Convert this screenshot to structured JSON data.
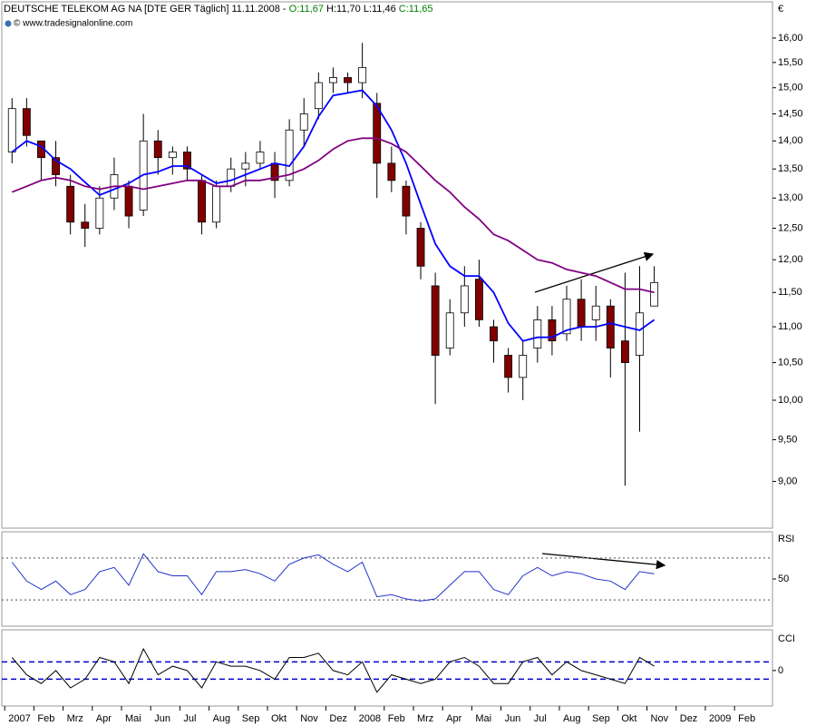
{
  "chart_data": [
    {
      "type": "candlestick",
      "title": "DEUTSCHE TELEKOM AG NA [DTE GER  Täglich]",
      "date": "11.11.2008 -",
      "header_open": "O:11,67",
      "header_high": "H:11,70",
      "header_low": "L:11,46",
      "header_close": "C:11,65",
      "source": "© www.tradesignalonline.com",
      "currency": "€",
      "log": true,
      "up_color": "#ffffff",
      "down_color": "#800000",
      "x": [
        0.25,
        0.75,
        1.25,
        1.75,
        2.25,
        2.75,
        3.25,
        3.75,
        4.25,
        4.75,
        5.25,
        5.75,
        6.25,
        6.75,
        7.25,
        7.75,
        8.25,
        8.75,
        9.25,
        9.75,
        10.25,
        10.75,
        11.25,
        11.75,
        12.25,
        12.75,
        13.25,
        13.75,
        14.25,
        14.75,
        15.25,
        15.75,
        16.25,
        16.75,
        17.25,
        17.75,
        18.25,
        18.75,
        19.25,
        19.75,
        20.25,
        20.75,
        21.25,
        21.75,
        22.25
      ],
      "open": [
        13.8,
        14.6,
        14.0,
        13.7,
        13.2,
        12.6,
        12.5,
        13.0,
        13.2,
        12.8,
        14.0,
        13.7,
        13.8,
        13.3,
        12.6,
        13.2,
        13.5,
        13.6,
        13.6,
        13.3,
        14.2,
        14.6,
        15.1,
        15.2,
        15.1,
        14.7,
        13.6,
        13.2,
        12.5,
        11.6,
        10.7,
        11.2,
        11.7,
        11.0,
        10.6,
        10.3,
        10.7,
        11.1,
        10.9,
        11.4,
        11.1,
        11.3,
        10.8,
        10.6,
        11.3
      ],
      "high": [
        14.8,
        14.8,
        14.0,
        14.0,
        13.4,
        12.9,
        13.2,
        13.7,
        13.3,
        14.5,
        14.2,
        13.9,
        13.9,
        13.4,
        13.3,
        13.7,
        13.8,
        14.0,
        13.8,
        14.4,
        14.8,
        15.3,
        15.4,
        15.3,
        15.9,
        14.9,
        13.9,
        13.3,
        12.6,
        11.8,
        11.4,
        11.9,
        12.0,
        11.1,
        10.7,
        10.8,
        11.3,
        11.3,
        11.6,
        11.7,
        11.6,
        11.4,
        11.8,
        11.9,
        11.9
      ],
      "low": [
        13.6,
        13.9,
        13.3,
        13.2,
        12.4,
        12.2,
        12.4,
        12.8,
        12.5,
        12.7,
        13.4,
        13.4,
        13.3,
        12.4,
        12.5,
        13.1,
        13.2,
        13.5,
        13.0,
        13.2,
        13.9,
        14.4,
        14.9,
        14.9,
        14.8,
        13.0,
        13.1,
        12.4,
        11.7,
        9.95,
        10.6,
        11.0,
        11.0,
        10.5,
        10.1,
        10.0,
        10.5,
        10.6,
        10.8,
        10.8,
        10.8,
        10.3,
        8.95,
        9.6,
        11.3
      ],
      "close": [
        14.6,
        14.1,
        13.7,
        13.4,
        12.6,
        12.5,
        13.0,
        13.4,
        12.7,
        14.0,
        13.7,
        13.8,
        13.5,
        12.6,
        13.2,
        13.5,
        13.6,
        13.8,
        13.3,
        14.2,
        14.5,
        15.1,
        15.2,
        15.1,
        15.4,
        13.6,
        13.3,
        12.7,
        11.9,
        10.6,
        11.2,
        11.6,
        11.1,
        10.8,
        10.3,
        10.6,
        11.1,
        10.8,
        11.4,
        11.0,
        11.3,
        10.7,
        10.5,
        11.2,
        11.65
      ],
      "series": [
        {
          "color": "#0000ff",
          "values": [
            13.8,
            14.0,
            13.9,
            13.65,
            13.5,
            13.27,
            13.05,
            13.15,
            13.25,
            13.4,
            13.45,
            13.55,
            13.55,
            13.4,
            13.25,
            13.3,
            13.4,
            13.5,
            13.6,
            13.55,
            13.9,
            14.45,
            14.85,
            14.9,
            14.95,
            14.65,
            14.2,
            13.6,
            12.9,
            12.25,
            11.9,
            11.75,
            11.75,
            11.5,
            11.05,
            10.8,
            10.85,
            10.85,
            10.95,
            11.0,
            11.0,
            11.05,
            11.0,
            10.95,
            11.1
          ]
        },
        {
          "color": "#800080",
          "values": [
            13.1,
            13.2,
            13.3,
            13.35,
            13.3,
            13.2,
            13.15,
            13.2,
            13.2,
            13.15,
            13.2,
            13.25,
            13.3,
            13.3,
            13.2,
            13.2,
            13.3,
            13.3,
            13.35,
            13.4,
            13.5,
            13.65,
            13.85,
            14.0,
            14.05,
            14.05,
            13.95,
            13.8,
            13.55,
            13.3,
            13.1,
            12.85,
            12.65,
            12.4,
            12.3,
            12.15,
            12.0,
            11.95,
            11.85,
            11.8,
            11.75,
            11.65,
            11.55,
            11.55,
            11.5
          ]
        }
      ],
      "xlim": [
        -0.1,
        26.3
      ],
      "ylim": [
        8.47,
        16.77
      ],
      "yticks": [
        {
          "value": 9,
          "label": "9,00"
        },
        {
          "value": 9.5,
          "label": "9,50"
        },
        {
          "value": 10,
          "label": "10,00"
        },
        {
          "value": 10.5,
          "label": "10,50"
        },
        {
          "value": 11,
          "label": "11,00"
        },
        {
          "value": 11.5,
          "label": "11,50"
        },
        {
          "value": 12,
          "label": "12,00"
        },
        {
          "value": 12.5,
          "label": "12,50"
        },
        {
          "value": 13,
          "label": "13,00"
        },
        {
          "value": 13.5,
          "label": "13,50"
        },
        {
          "value": 14,
          "label": "14,00"
        },
        {
          "value": 14.5,
          "label": "14,50"
        },
        {
          "value": 15,
          "label": "15,00"
        },
        {
          "value": 15.5,
          "label": "15,50"
        },
        {
          "value": 16,
          "label": "16,00"
        }
      ]
    },
    {
      "type": "line",
      "title": "RSI",
      "x": [
        0.25,
        0.75,
        1.25,
        1.75,
        2.25,
        2.75,
        3.25,
        3.75,
        4.25,
        4.75,
        5.25,
        5.75,
        6.25,
        6.75,
        7.25,
        7.75,
        8.25,
        8.75,
        9.25,
        9.75,
        10.25,
        10.75,
        11.25,
        11.75,
        12.25,
        12.75,
        13.25,
        13.75,
        14.25,
        14.75,
        15.25,
        15.75,
        16.25,
        16.75,
        17.25,
        17.75,
        18.25,
        18.75,
        19.25,
        19.75,
        20.25,
        20.75,
        21.25,
        21.75,
        22.25
      ],
      "series": [
        {
          "color": "#2233cc",
          "values": [
            66,
            48,
            40,
            48,
            35,
            40,
            57,
            61,
            44,
            74,
            57,
            53,
            53,
            35,
            57,
            57,
            59,
            55,
            48,
            64,
            70,
            73,
            64,
            57,
            66,
            33,
            35,
            31,
            29,
            31,
            44,
            57,
            57,
            40,
            35,
            53,
            61,
            53,
            57,
            55,
            50,
            48,
            40,
            57,
            55
          ]
        }
      ],
      "levels": [
        30,
        70
      ],
      "level_color": "#888888",
      "level_dash": "2,3",
      "xlim": [
        -0.1,
        26.3
      ],
      "ylim": [
        5,
        95
      ],
      "yticks": [
        50
      ]
    },
    {
      "type": "line",
      "title": "CCI",
      "x": [
        0.25,
        0.75,
        1.25,
        1.75,
        2.25,
        2.75,
        3.25,
        3.75,
        4.25,
        4.75,
        5.25,
        5.75,
        6.25,
        6.75,
        7.25,
        7.75,
        8.25,
        8.75,
        9.25,
        9.75,
        10.25,
        10.75,
        11.25,
        11.75,
        12.25,
        12.75,
        13.25,
        13.75,
        14.25,
        14.75,
        15.25,
        15.75,
        16.25,
        16.75,
        17.25,
        17.75,
        18.25,
        18.75,
        19.25,
        19.75,
        20.25,
        20.75,
        21.25,
        21.75,
        22.25
      ],
      "series": [
        {
          "color": "#000000",
          "values": [
            150,
            -50,
            -150,
            0,
            -200,
            -100,
            150,
            100,
            -150,
            250,
            -50,
            50,
            0,
            -200,
            100,
            50,
            50,
            0,
            -100,
            150,
            150,
            200,
            0,
            -50,
            100,
            -250,
            -50,
            -100,
            -150,
            -100,
            100,
            150,
            50,
            -150,
            -150,
            100,
            150,
            -50,
            100,
            0,
            -50,
            -100,
            -150,
            150,
            50
          ]
        }
      ],
      "levels": [
        -100,
        100
      ],
      "level_color": "#0000cc",
      "level_dash": "6,4",
      "xlim": [
        -0.1,
        26.3
      ],
      "ylim": [
        -410,
        470
      ],
      "yticks": [
        0
      ],
      "xticks": [
        {
          "value": 0,
          "label": "2007"
        },
        {
          "value": 1,
          "label": "Feb"
        },
        {
          "value": 2,
          "label": "Mrz"
        },
        {
          "value": 3,
          "label": "Apr"
        },
        {
          "value": 4,
          "label": "Mai"
        },
        {
          "value": 5,
          "label": "Jun"
        },
        {
          "value": 6,
          "label": "Jul"
        },
        {
          "value": 7,
          "label": "Aug"
        },
        {
          "value": 8,
          "label": "Sep"
        },
        {
          "value": 9,
          "label": "Okt"
        },
        {
          "value": 10,
          "label": "Nov"
        },
        {
          "value": 11,
          "label": "Dez"
        },
        {
          "value": 12,
          "label": "2008"
        },
        {
          "value": 13,
          "label": "Feb"
        },
        {
          "value": 14,
          "label": "Mrz"
        },
        {
          "value": 15,
          "label": "Apr"
        },
        {
          "value": 16,
          "label": "Mai"
        },
        {
          "value": 17,
          "label": "Jun"
        },
        {
          "value": 18,
          "label": "Jul"
        },
        {
          "value": 19,
          "label": "Aug"
        },
        {
          "value": 20,
          "label": "Sep"
        },
        {
          "value": 21,
          "label": "Okt"
        },
        {
          "value": 22,
          "label": "Nov"
        },
        {
          "value": 23,
          "label": "Dez"
        },
        {
          "value": 24,
          "label": "2009"
        },
        {
          "value": 25,
          "label": "Feb"
        }
      ]
    }
  ]
}
